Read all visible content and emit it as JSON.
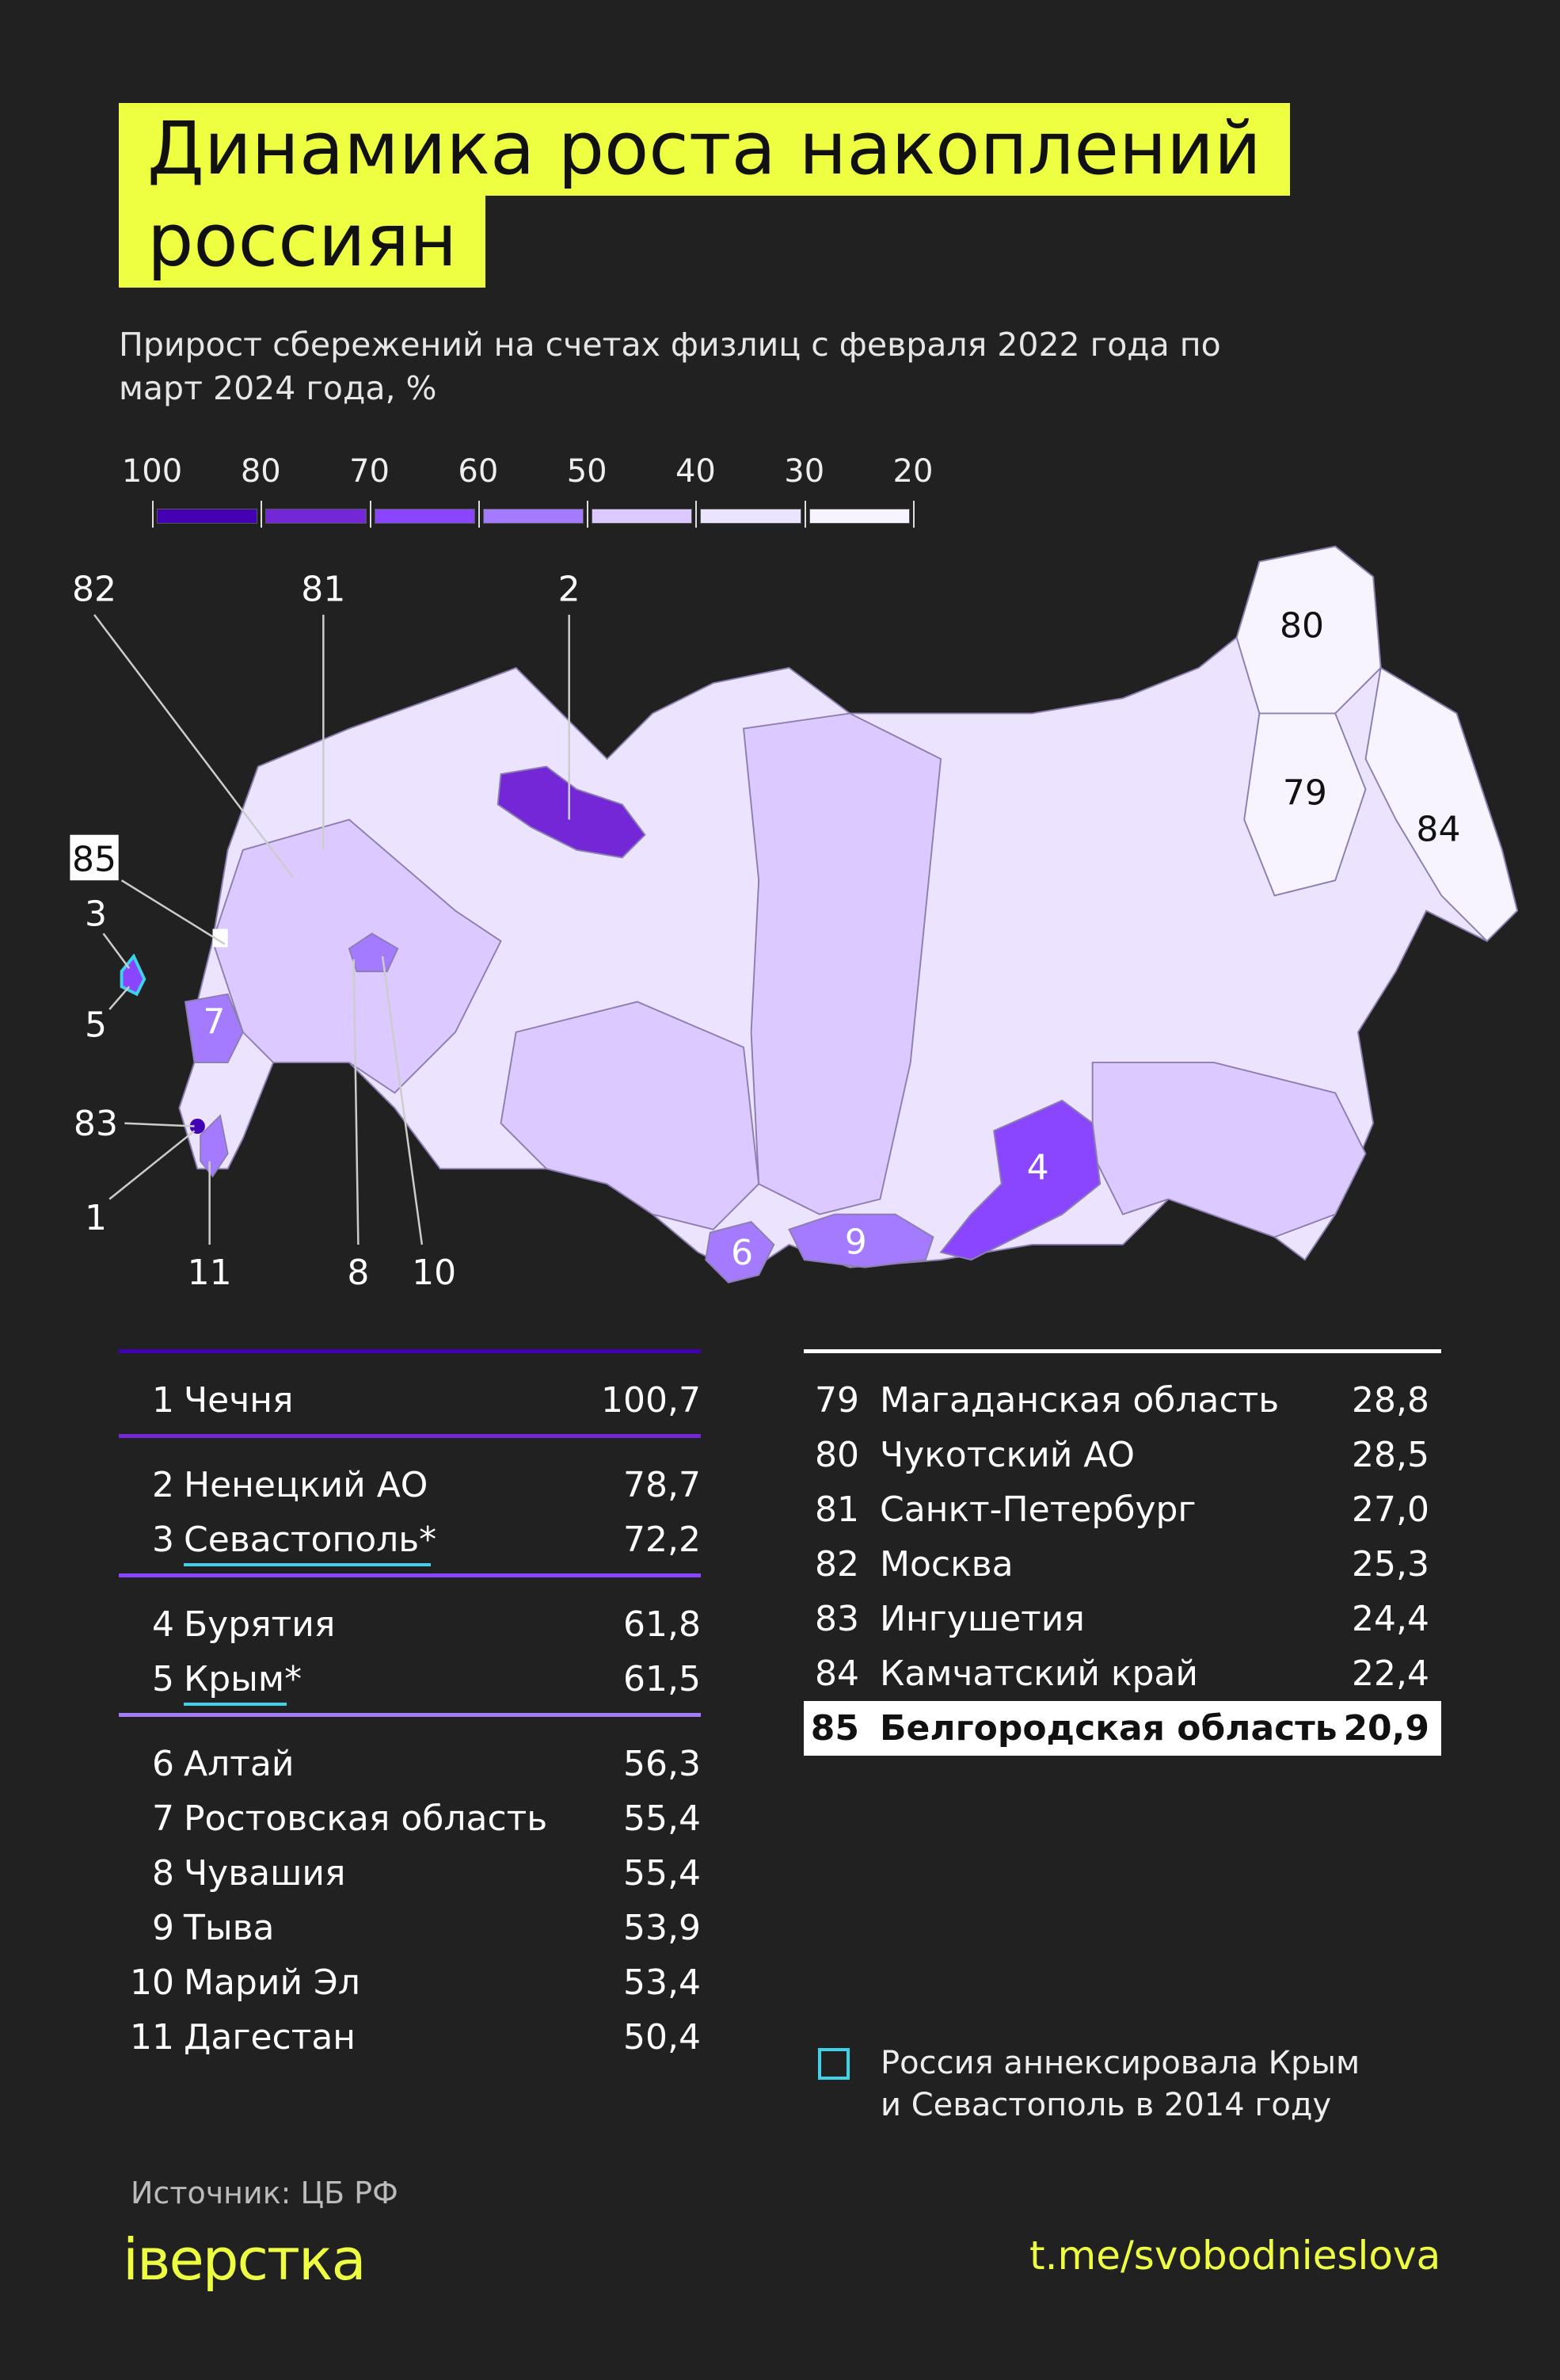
{
  "title": "Динамика роста накоплений россиян",
  "subtitle": "Прирост сбережений на счетах физлиц с февраля 2022 года по март 2024 года, %",
  "color_scale": {
    "ticks": [
      "100",
      "80",
      "70",
      "60",
      "50",
      "40",
      "30",
      "20"
    ],
    "colors": [
      "#4400b3",
      "#7327d6",
      "#8a45ff",
      "#a47aff",
      "#dcc9ff",
      "#ece4ff",
      "#f7f4ff"
    ]
  },
  "chart_data": {
    "type": "table",
    "title": "Динамика роста накоплений россиян",
    "subtitle": "Прирост сбережений на счетах физлиц с февраля 2022 года по март 2024 года, %",
    "top": [
      {
        "rank": "1",
        "region": "Чечня",
        "value": "100,7",
        "group": 0
      },
      {
        "rank": "2",
        "region": "Ненецкий АО",
        "value": "78,7",
        "group": 1
      },
      {
        "rank": "3",
        "region": "Севастополь*",
        "value": "72,2",
        "group": 1,
        "annexed": true
      },
      {
        "rank": "4",
        "region": "Бурятия",
        "value": "61,8",
        "group": 2
      },
      {
        "rank": "5",
        "region": "Крым*",
        "value": "61,5",
        "group": 2,
        "annexed": true
      },
      {
        "rank": "6",
        "region": "Алтай",
        "value": "56,3",
        "group": 3
      },
      {
        "rank": "7",
        "region": "Ростовская область",
        "value": "55,4",
        "group": 3
      },
      {
        "rank": "8",
        "region": "Чувашия",
        "value": "55,4",
        "group": 3
      },
      {
        "rank": "9",
        "region": "Тыва",
        "value": "53,9",
        "group": 3
      },
      {
        "rank": "10",
        "region": "Марий Эл",
        "value": "53,4",
        "group": 3
      },
      {
        "rank": "11",
        "region": "Дагестан",
        "value": "50,4",
        "group": 3
      }
    ],
    "bottom": [
      {
        "rank": "79",
        "region": "Магаданская область",
        "value": "28,8"
      },
      {
        "rank": "80",
        "region": "Чукотский АО",
        "value": "28,5"
      },
      {
        "rank": "81",
        "region": "Санкт-Петербург",
        "value": "27,0"
      },
      {
        "rank": "82",
        "region": "Москва",
        "value": "25,3"
      },
      {
        "rank": "83",
        "region": "Ингушетия",
        "value": "24,4"
      },
      {
        "rank": "84",
        "region": "Камчатский край",
        "value": "22,4"
      },
      {
        "rank": "85",
        "region": "Белгородская область",
        "value": "20,9",
        "highlight": true
      }
    ]
  },
  "map_labels": {
    "r82": "82",
    "r81": "81",
    "r2": "2",
    "r80": "80",
    "r79": "79",
    "r84": "84",
    "r85": "85",
    "r3": "3",
    "r5": "5",
    "r7": "7",
    "r83": "83",
    "r1": "1",
    "r11": "11",
    "r8": "8",
    "r10": "10",
    "r4": "4",
    "r9": "9",
    "r6": "6"
  },
  "annex_note": {
    "line1": "Россия аннексировала Крым",
    "line2": "и Севастополь в 2014 году",
    "color": "#3dd3e8"
  },
  "source": "Источник: ЦБ РФ",
  "logo": "іверстка",
  "url": "t.me/svobodnieslova",
  "accent": "#eeff41",
  "background": "#212121"
}
